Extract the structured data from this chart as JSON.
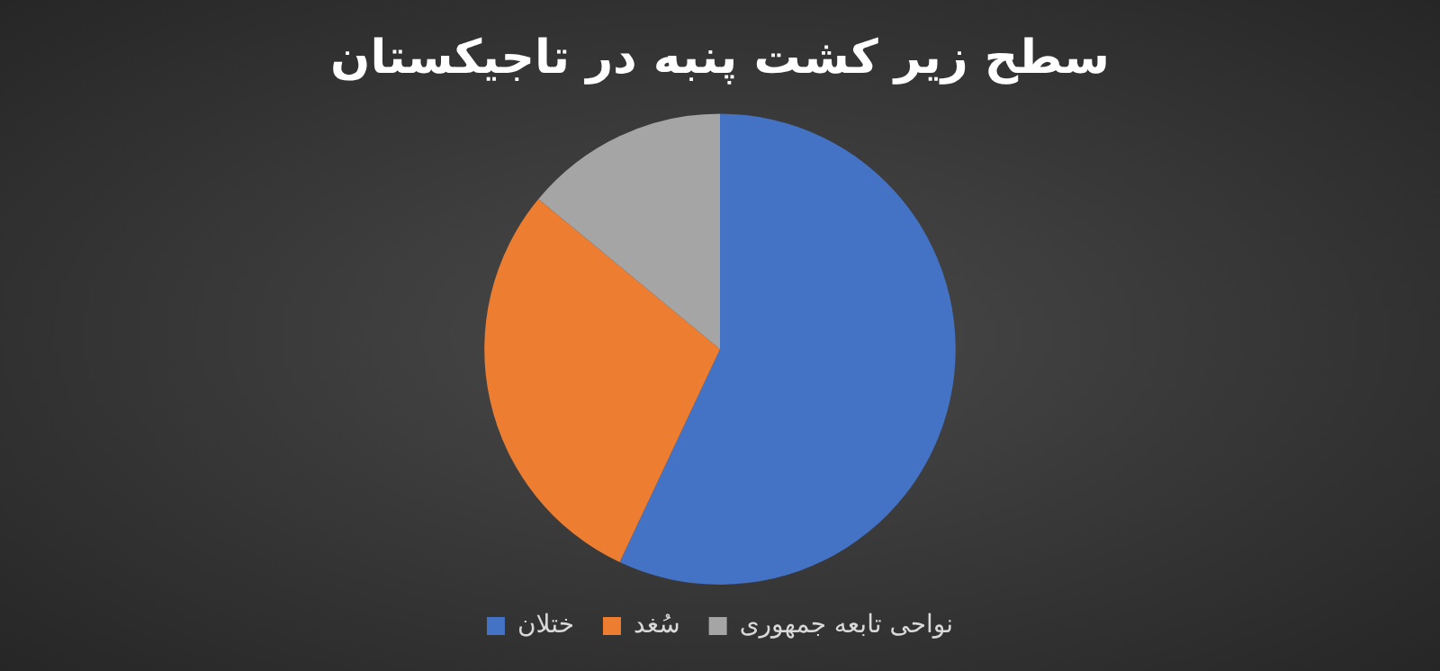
{
  "chart_data": {
    "type": "pie",
    "title": "سطح زیر کشت پنبه در تاجیکستان",
    "categories": [
      "ختلان",
      "سُغد",
      "نواحی تابعه جمهوری"
    ],
    "values": [
      57,
      29,
      14
    ],
    "colors": [
      "#4472c4",
      "#ed7d31",
      "#a5a5a5"
    ],
    "legend": "bottom"
  }
}
